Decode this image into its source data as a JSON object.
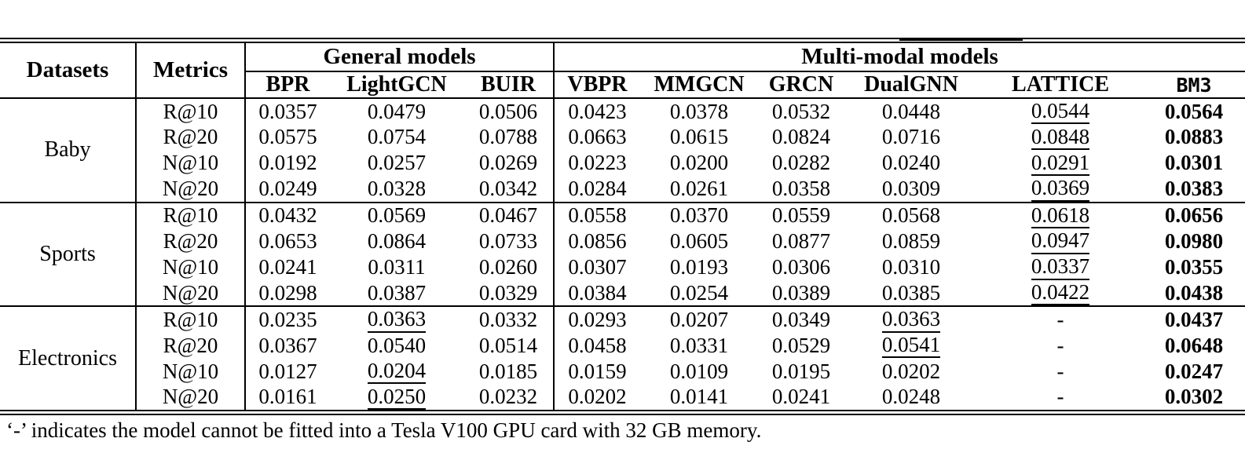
{
  "colors": {
    "text": "#000000",
    "background": "#ffffff",
    "rule": "#000000"
  },
  "page": {
    "footnote": "‘-’ indicates the model cannot be fitted into a Tesla V100 GPU card with 32 GB memory."
  },
  "table": {
    "datasets_label": "Datasets",
    "metrics_label": "Metrics",
    "groups": [
      {
        "label": "General models",
        "models": [
          "BPR",
          "LightGCN",
          "BUIR"
        ]
      },
      {
        "label": "Multi-modal models",
        "models": [
          "VBPR",
          "MMGCN",
          "GRCN",
          "DualGNN",
          "LATTICE",
          "BM3"
        ]
      }
    ],
    "style_legend": {
      "u": "underline (second best)",
      "b": "bold (best)"
    },
    "body": [
      {
        "dataset": "Baby",
        "rows": [
          {
            "metric": "R@10",
            "cells": [
              {
                "t": "0.0357"
              },
              {
                "t": "0.0479"
              },
              {
                "t": "0.0506"
              },
              {
                "t": "0.0423"
              },
              {
                "t": "0.0378"
              },
              {
                "t": "0.0532"
              },
              {
                "t": "0.0448"
              },
              {
                "t": "0.0544",
                "s": "u"
              },
              {
                "t": "0.0564",
                "s": "b"
              }
            ]
          },
          {
            "metric": "R@20",
            "cells": [
              {
                "t": "0.0575"
              },
              {
                "t": "0.0754"
              },
              {
                "t": "0.0788"
              },
              {
                "t": "0.0663"
              },
              {
                "t": "0.0615"
              },
              {
                "t": "0.0824"
              },
              {
                "t": "0.0716"
              },
              {
                "t": "0.0848",
                "s": "u"
              },
              {
                "t": "0.0883",
                "s": "b"
              }
            ]
          },
          {
            "metric": "N@10",
            "cells": [
              {
                "t": "0.0192"
              },
              {
                "t": "0.0257"
              },
              {
                "t": "0.0269"
              },
              {
                "t": "0.0223"
              },
              {
                "t": "0.0200"
              },
              {
                "t": "0.0282"
              },
              {
                "t": "0.0240"
              },
              {
                "t": "0.0291",
                "s": "u"
              },
              {
                "t": "0.0301",
                "s": "b"
              }
            ]
          },
          {
            "metric": "N@20",
            "cells": [
              {
                "t": "0.0249"
              },
              {
                "t": "0.0328"
              },
              {
                "t": "0.0342"
              },
              {
                "t": "0.0284"
              },
              {
                "t": "0.0261"
              },
              {
                "t": "0.0358"
              },
              {
                "t": "0.0309"
              },
              {
                "t": "0.0369",
                "s": "u"
              },
              {
                "t": "0.0383",
                "s": "b"
              }
            ]
          }
        ]
      },
      {
        "dataset": "Sports",
        "rows": [
          {
            "metric": "R@10",
            "cells": [
              {
                "t": "0.0432"
              },
              {
                "t": "0.0569"
              },
              {
                "t": "0.0467"
              },
              {
                "t": "0.0558"
              },
              {
                "t": "0.0370"
              },
              {
                "t": "0.0559"
              },
              {
                "t": "0.0568"
              },
              {
                "t": "0.0618",
                "s": "u"
              },
              {
                "t": "0.0656",
                "s": "b"
              }
            ]
          },
          {
            "metric": "R@20",
            "cells": [
              {
                "t": "0.0653"
              },
              {
                "t": "0.0864"
              },
              {
                "t": "0.0733"
              },
              {
                "t": "0.0856"
              },
              {
                "t": "0.0605"
              },
              {
                "t": "0.0877"
              },
              {
                "t": "0.0859"
              },
              {
                "t": "0.0947",
                "s": "u"
              },
              {
                "t": "0.0980",
                "s": "b"
              }
            ]
          },
          {
            "metric": "N@10",
            "cells": [
              {
                "t": "0.0241"
              },
              {
                "t": "0.0311"
              },
              {
                "t": "0.0260"
              },
              {
                "t": "0.0307"
              },
              {
                "t": "0.0193"
              },
              {
                "t": "0.0306"
              },
              {
                "t": "0.0310"
              },
              {
                "t": "0.0337",
                "s": "u"
              },
              {
                "t": "0.0355",
                "s": "b"
              }
            ]
          },
          {
            "metric": "N@20",
            "cells": [
              {
                "t": "0.0298"
              },
              {
                "t": "0.0387"
              },
              {
                "t": "0.0329"
              },
              {
                "t": "0.0384"
              },
              {
                "t": "0.0254"
              },
              {
                "t": "0.0389"
              },
              {
                "t": "0.0385"
              },
              {
                "t": "0.0422",
                "s": "u"
              },
              {
                "t": "0.0438",
                "s": "b"
              }
            ]
          }
        ]
      },
      {
        "dataset": "Electronics",
        "rows": [
          {
            "metric": "R@10",
            "cells": [
              {
                "t": "0.0235"
              },
              {
                "t": "0.0363",
                "s": "u"
              },
              {
                "t": "0.0332"
              },
              {
                "t": "0.0293"
              },
              {
                "t": "0.0207"
              },
              {
                "t": "0.0349"
              },
              {
                "t": "0.0363",
                "s": "u"
              },
              {
                "t": "-"
              },
              {
                "t": "0.0437",
                "s": "b"
              }
            ]
          },
          {
            "metric": "R@20",
            "cells": [
              {
                "t": "0.0367"
              },
              {
                "t": "0.0540"
              },
              {
                "t": "0.0514"
              },
              {
                "t": "0.0458"
              },
              {
                "t": "0.0331"
              },
              {
                "t": "0.0529"
              },
              {
                "t": "0.0541",
                "s": "u"
              },
              {
                "t": "-"
              },
              {
                "t": "0.0648",
                "s": "b"
              }
            ]
          },
          {
            "metric": "N@10",
            "cells": [
              {
                "t": "0.0127"
              },
              {
                "t": "0.0204",
                "s": "u"
              },
              {
                "t": "0.0185"
              },
              {
                "t": "0.0159"
              },
              {
                "t": "0.0109"
              },
              {
                "t": "0.0195"
              },
              {
                "t": "0.0202"
              },
              {
                "t": "-"
              },
              {
                "t": "0.0247",
                "s": "b"
              }
            ]
          },
          {
            "metric": "N@20",
            "cells": [
              {
                "t": "0.0161"
              },
              {
                "t": "0.0250",
                "s": "u"
              },
              {
                "t": "0.0232"
              },
              {
                "t": "0.0202"
              },
              {
                "t": "0.0141"
              },
              {
                "t": "0.0241"
              },
              {
                "t": "0.0248"
              },
              {
                "t": "-"
              },
              {
                "t": "0.0302",
                "s": "b"
              }
            ]
          }
        ]
      }
    ]
  }
}
